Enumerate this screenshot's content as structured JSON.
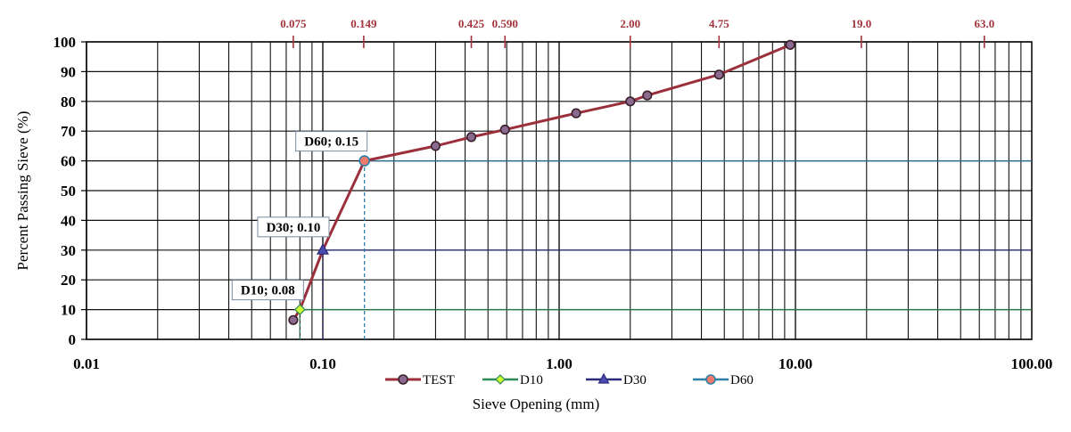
{
  "chart_data": {
    "type": "line",
    "x_scale": "log",
    "xlim": [
      0.01,
      100
    ],
    "ylim": [
      0,
      100
    ],
    "grid": true,
    "xlabel": "Sieve Opening (mm)",
    "ylabel": "Percent Passing Sieve (%)",
    "x_ticks": [
      {
        "value": 0.01,
        "label": "0.01"
      },
      {
        "value": 0.1,
        "label": "0.10"
      },
      {
        "value": 1,
        "label": "1.00"
      },
      {
        "value": 10,
        "label": "10.00"
      },
      {
        "value": 100,
        "label": "100.00"
      }
    ],
    "y_ticks": [
      0,
      10,
      20,
      30,
      40,
      50,
      60,
      70,
      80,
      90,
      100
    ],
    "sieve_sizes": [
      {
        "value": 0.075,
        "label": "0.075"
      },
      {
        "value": 0.149,
        "label": "0.149"
      },
      {
        "value": 0.425,
        "label": "0.425"
      },
      {
        "value": 0.59,
        "label": "0.590"
      },
      {
        "value": 2.0,
        "label": "2.00"
      },
      {
        "value": 4.75,
        "label": "4.75"
      },
      {
        "value": 19.0,
        "label": "19.0"
      },
      {
        "value": 63.0,
        "label": "63.0"
      }
    ],
    "series": [
      {
        "name": "TEST",
        "color": "#9b2f3b",
        "marker": "circle",
        "marker_color": "#8a6a8e",
        "x": [
          0.075,
          0.08,
          0.1,
          0.15,
          0.3,
          0.425,
          0.59,
          1.18,
          2.0,
          2.36,
          4.75,
          9.5
        ],
        "y": [
          6.5,
          10,
          30,
          60,
          65,
          68,
          70.5,
          76,
          80,
          82,
          89,
          99
        ]
      },
      {
        "name": "D10",
        "color": "#2e8b57",
        "marker": "diamond",
        "marker_color": "#ccff33",
        "x": [
          0.08,
          0.08,
          100
        ],
        "y": [
          0,
          10,
          10
        ]
      },
      {
        "name": "D30",
        "color": "#2b2b7a",
        "marker": "triangle",
        "marker_color": "#4b4bb0",
        "x": [
          0.1,
          0.1,
          100
        ],
        "y": [
          0,
          30,
          30
        ]
      },
      {
        "name": "D60",
        "color": "#2e7fa8",
        "marker": "circle",
        "marker_color": "#f07b6c",
        "x": [
          0.15,
          0.15,
          100
        ],
        "y": [
          0,
          60,
          60
        ]
      }
    ],
    "annotations": [
      {
        "text": "D10; 0.08",
        "x": 0.08,
        "y": 10
      },
      {
        "text": "D30; 0.10",
        "x": 0.1,
        "y": 30
      },
      {
        "text": "D60; 0.15",
        "x": 0.15,
        "y": 60
      }
    ],
    "legend_position": "bottom"
  }
}
